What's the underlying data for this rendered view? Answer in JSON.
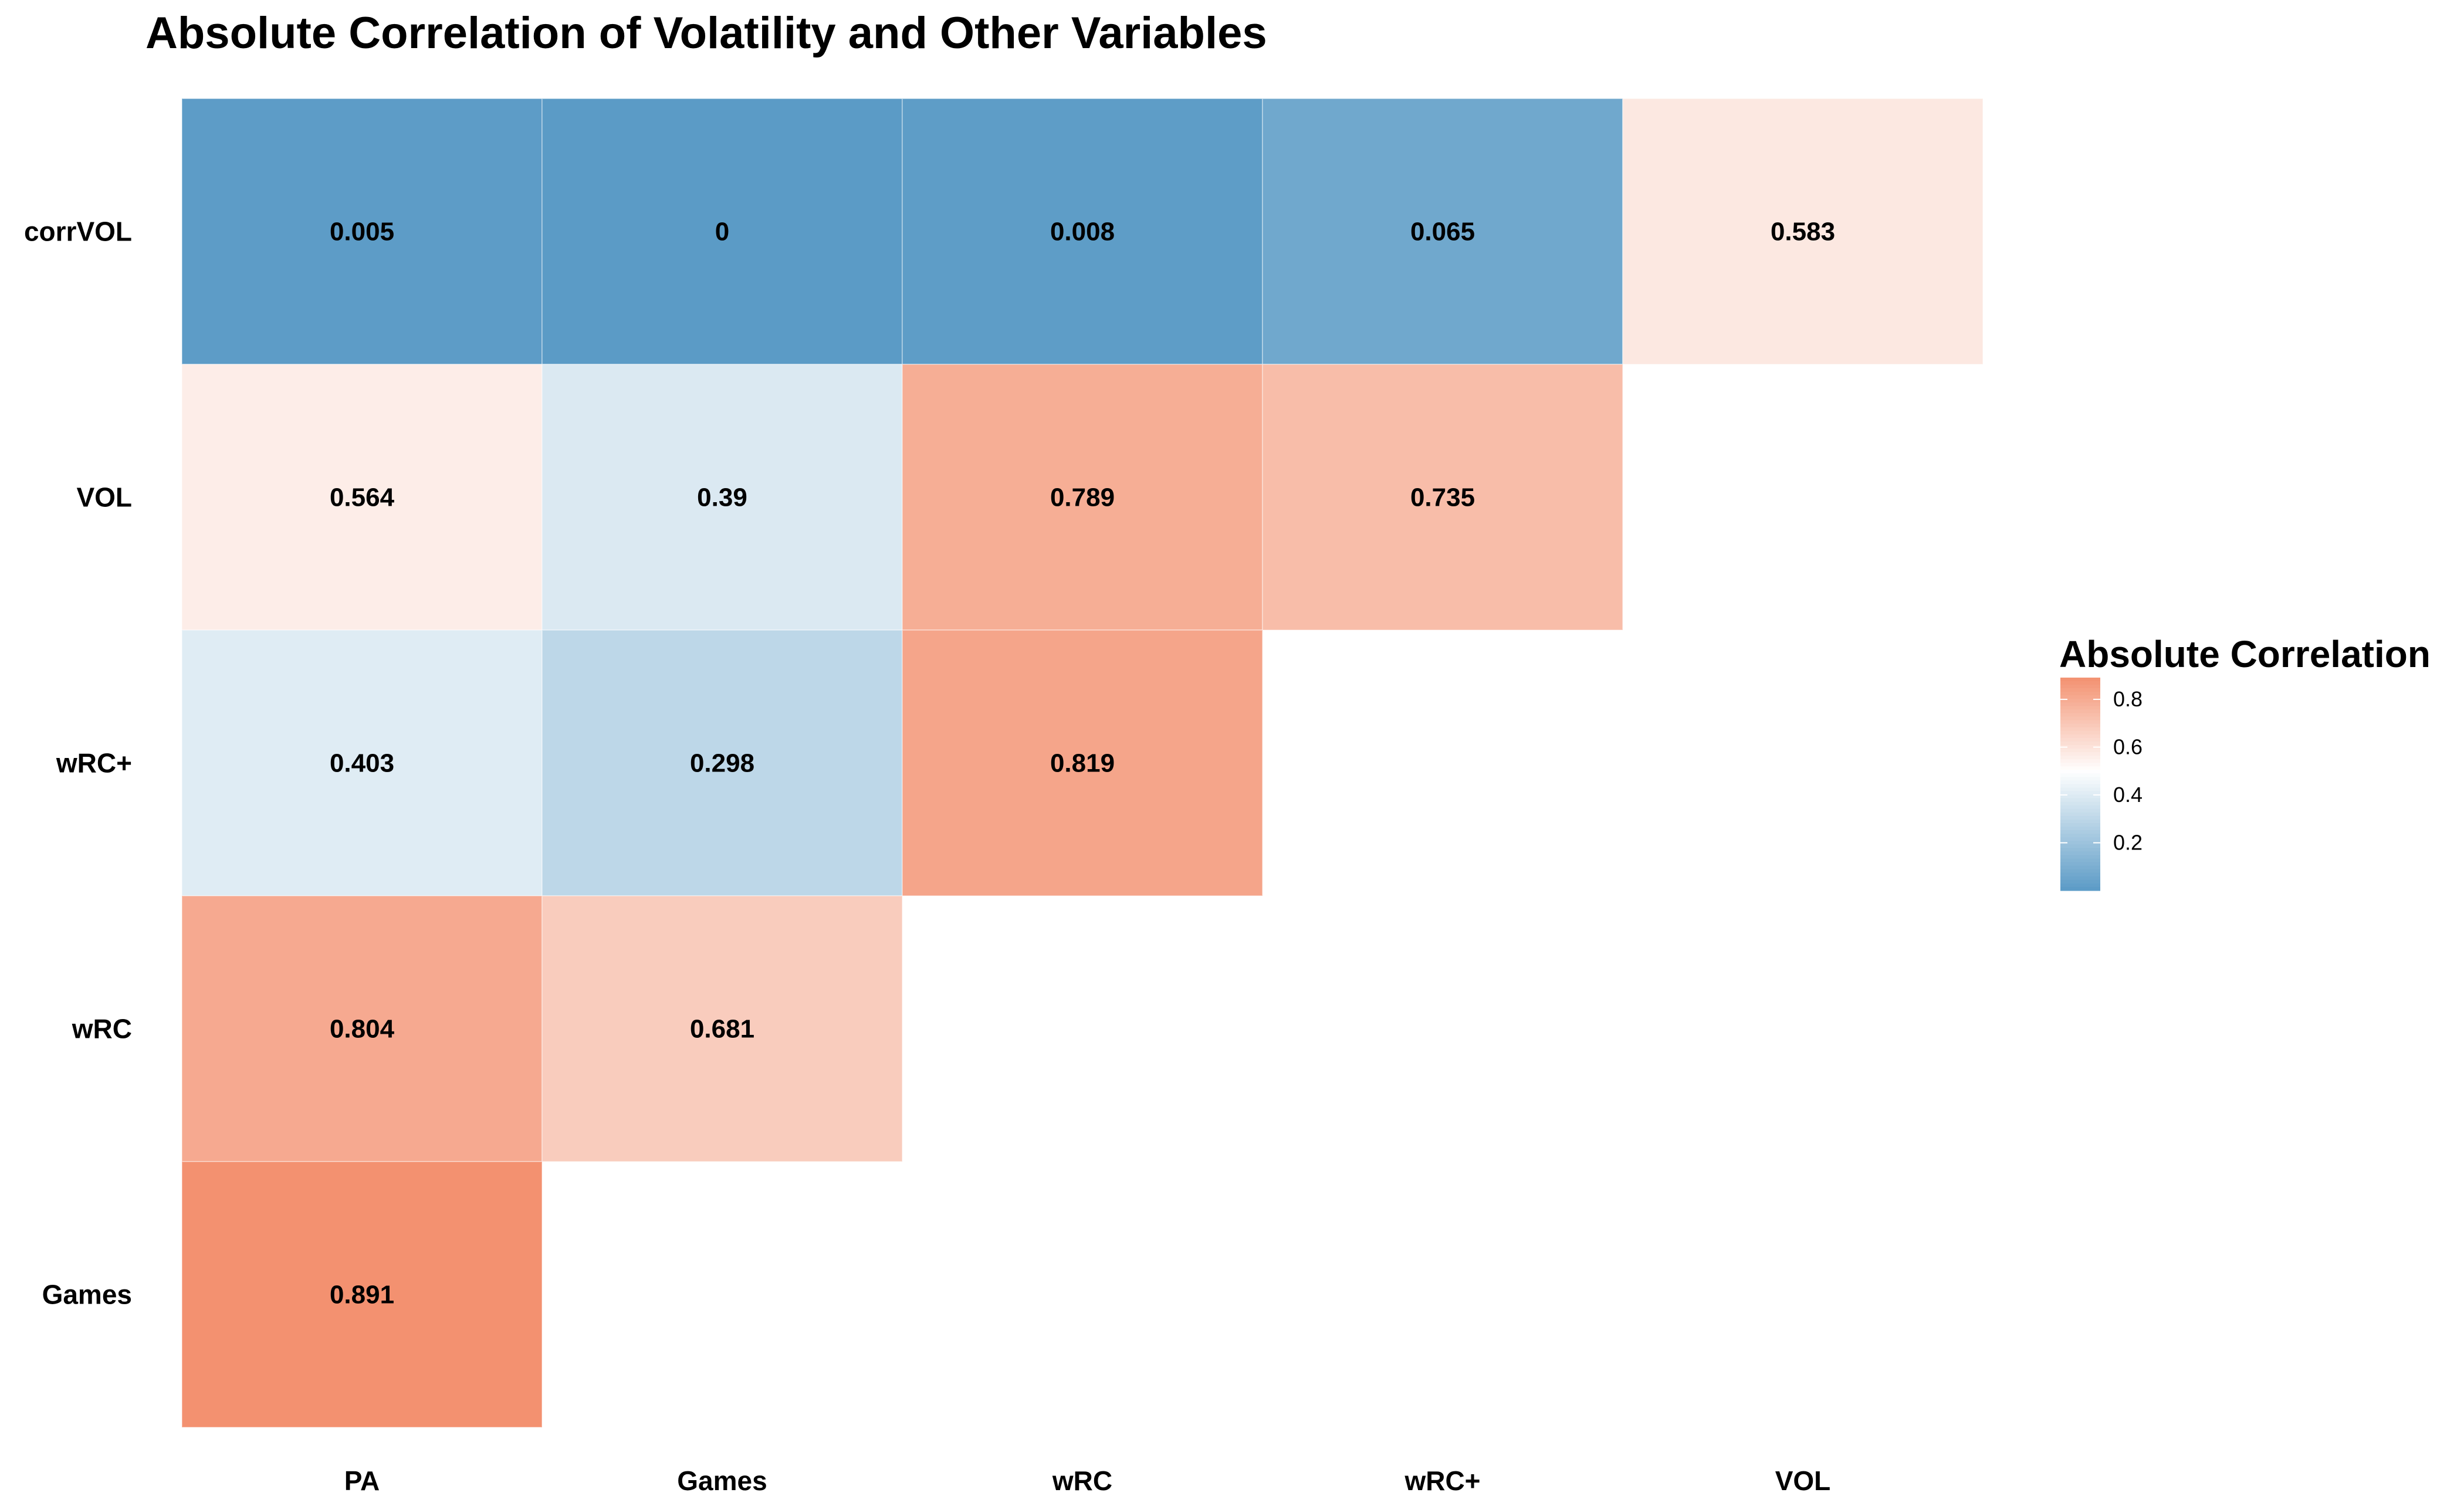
{
  "chart_data": {
    "type": "heatmap",
    "title": "Absolute Correlation of Volatility and Other Variables",
    "x_categories": [
      "PA",
      "Games",
      "wRC",
      "wRC+",
      "VOL"
    ],
    "y_categories": [
      "corrVOL",
      "VOL",
      "wRC+",
      "wRC",
      "Games"
    ],
    "cells": [
      {
        "row": "corrVOL",
        "col": "PA",
        "value": 0.005,
        "label": "0.005"
      },
      {
        "row": "corrVOL",
        "col": "Games",
        "value": 0,
        "label": "0"
      },
      {
        "row": "corrVOL",
        "col": "wRC",
        "value": 0.008,
        "label": "0.008"
      },
      {
        "row": "corrVOL",
        "col": "wRC+",
        "value": 0.065,
        "label": "0.065"
      },
      {
        "row": "corrVOL",
        "col": "VOL",
        "value": 0.583,
        "label": "0.583"
      },
      {
        "row": "VOL",
        "col": "PA",
        "value": 0.564,
        "label": "0.564"
      },
      {
        "row": "VOL",
        "col": "Games",
        "value": 0.39,
        "label": "0.39"
      },
      {
        "row": "VOL",
        "col": "wRC",
        "value": 0.789,
        "label": "0.789"
      },
      {
        "row": "VOL",
        "col": "wRC+",
        "value": 0.735,
        "label": "0.735"
      },
      {
        "row": "wRC+",
        "col": "PA",
        "value": 0.403,
        "label": "0.403"
      },
      {
        "row": "wRC+",
        "col": "Games",
        "value": 0.298,
        "label": "0.298"
      },
      {
        "row": "wRC+",
        "col": "wRC",
        "value": 0.819,
        "label": "0.819"
      },
      {
        "row": "wRC",
        "col": "PA",
        "value": 0.804,
        "label": "0.804"
      },
      {
        "row": "wRC",
        "col": "Games",
        "value": 0.681,
        "label": "0.681"
      },
      {
        "row": "Games",
        "col": "PA",
        "value": 0.891,
        "label": "0.891"
      }
    ],
    "color_scale": {
      "low": "#5b9bc6",
      "mid": "#ffffff",
      "high": "#f39170",
      "midpoint": 0.5,
      "min": 0,
      "max": 0.891
    },
    "legend": {
      "title": "Absolute Correlation",
      "ticks": [
        {
          "value": 0.8,
          "label": "0.8"
        },
        {
          "value": 0.6,
          "label": "0.6"
        },
        {
          "value": 0.4,
          "label": "0.4"
        },
        {
          "value": 0.2,
          "label": "0.2"
        }
      ],
      "placement": "right"
    },
    "grid": false
  }
}
